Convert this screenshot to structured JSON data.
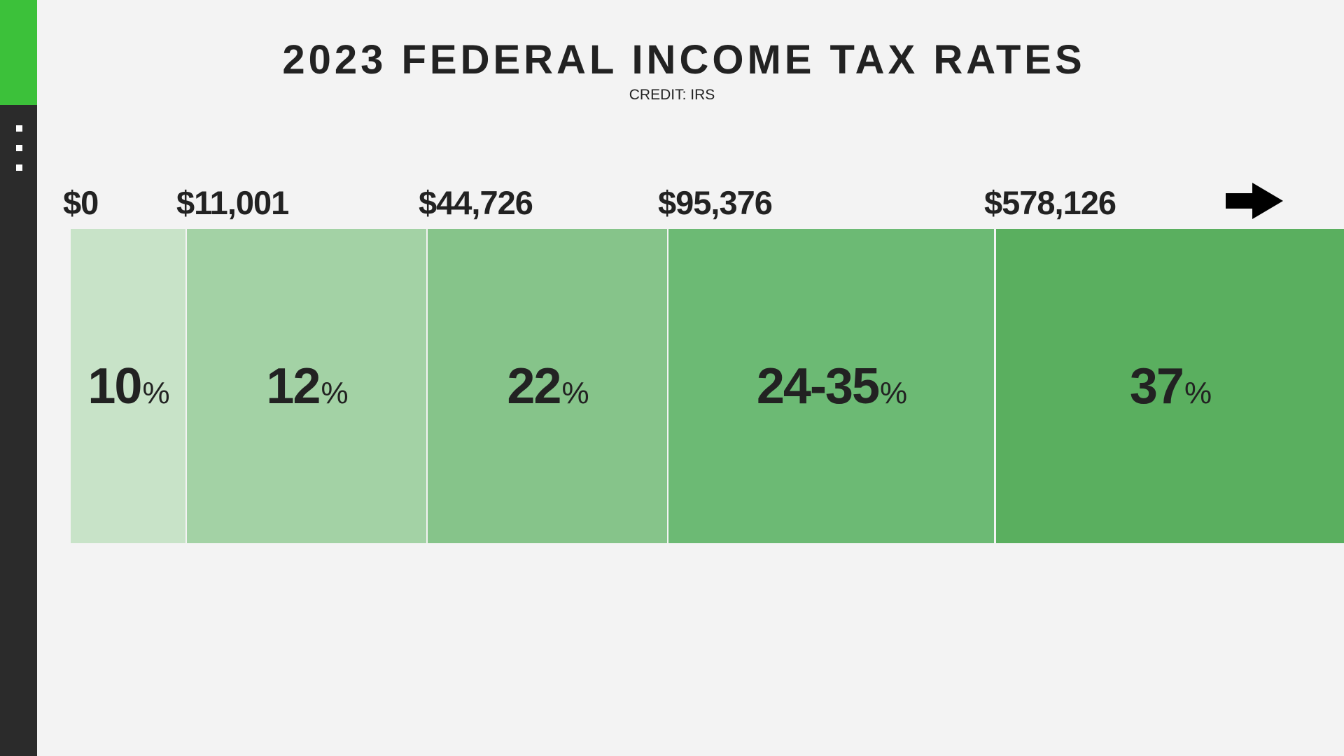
{
  "title": "2023 FEDERAL INCOME TAX RATES",
  "credit": "CREDIT: IRS",
  "icons": {
    "arrow": "arrow-right-icon",
    "menu": "vertical-dots-icon"
  },
  "colors": {
    "accent": "#3cc13a",
    "sidebar": "#2b2b2b",
    "background": "#f3f3f3"
  },
  "chart_data": {
    "type": "bar",
    "title": "2023 FEDERAL INCOME TAX RATES",
    "subtitle": "CREDIT: IRS",
    "brackets": [
      {
        "threshold": "$0",
        "rate": "10",
        "unit": "%",
        "color": "#c8e3c8"
      },
      {
        "threshold": "$11,001",
        "rate": "12",
        "unit": "%",
        "color": "#a3d2a5"
      },
      {
        "threshold": "$44,726",
        "rate": "22",
        "unit": "%",
        "color": "#86c48a"
      },
      {
        "threshold": "$95,376",
        "rate": "24-35",
        "unit": "%",
        "color": "#6cba74"
      },
      {
        "threshold": "$578,126",
        "rate": "37",
        "unit": "%",
        "color": "#5aaf5f"
      }
    ]
  }
}
